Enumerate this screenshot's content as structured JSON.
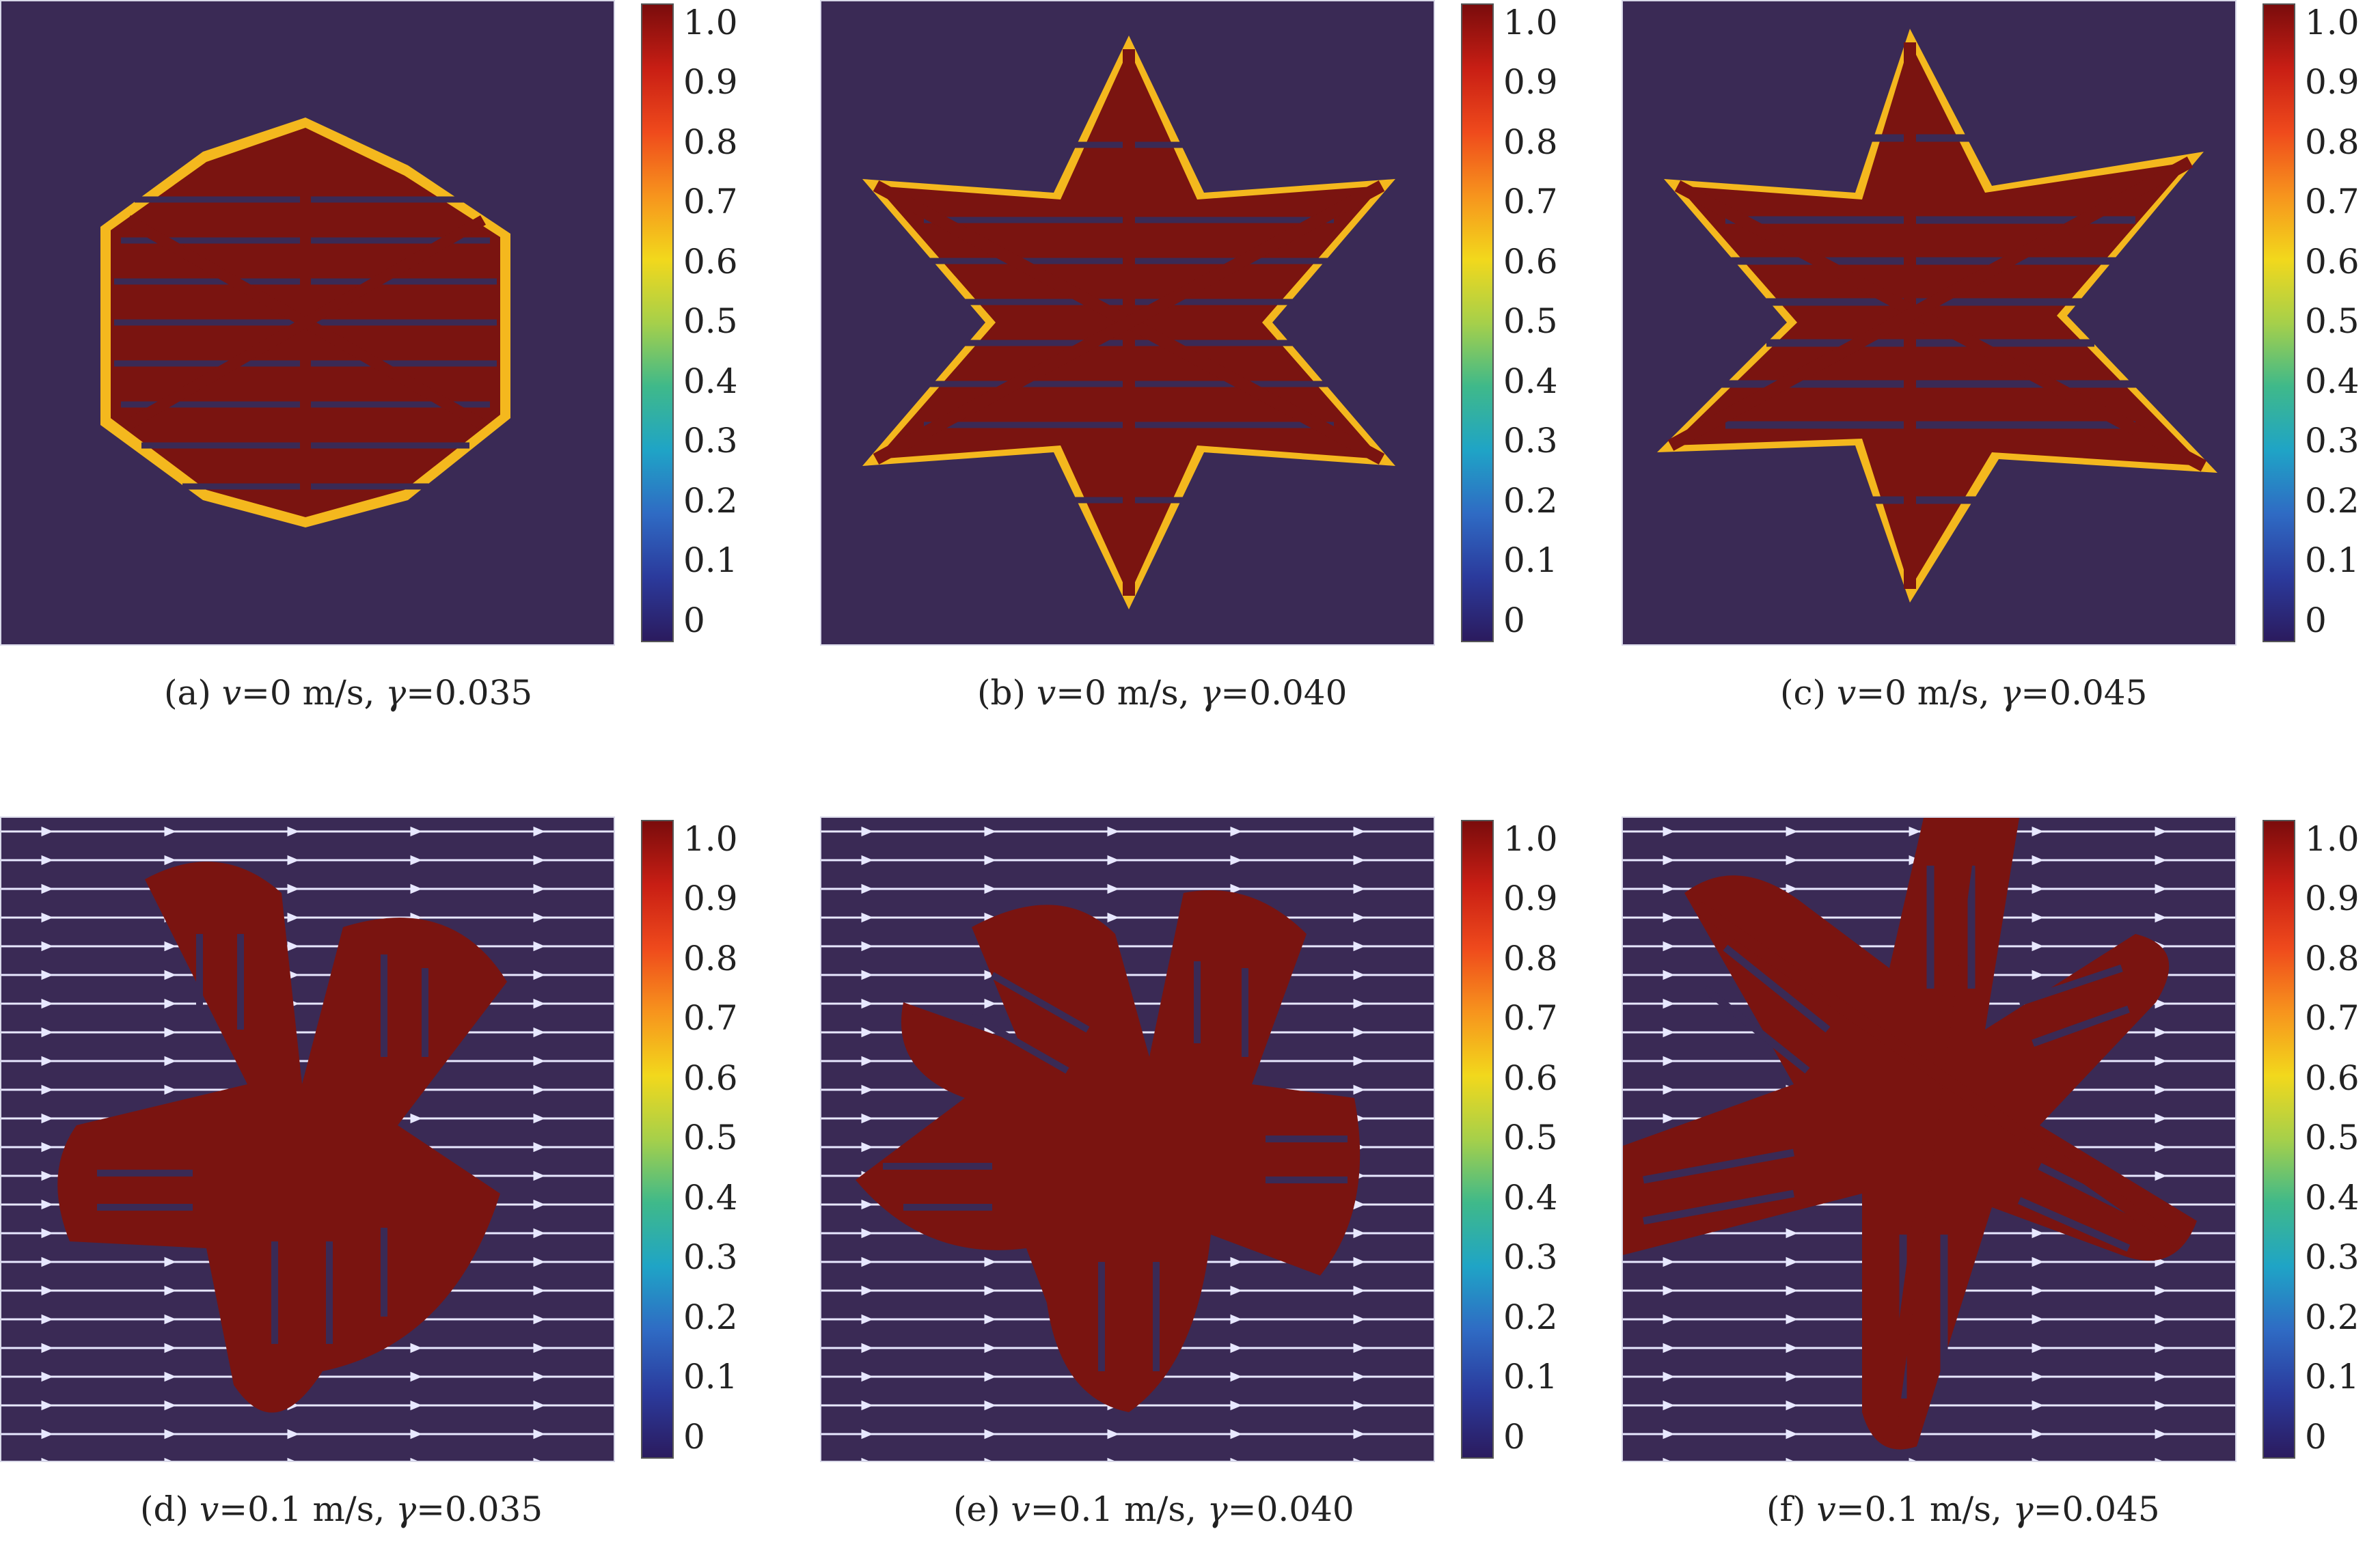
{
  "colorbar": {
    "ticks": [
      "1.0",
      "0.9",
      "0.8",
      "0.7",
      "0.6",
      "0.5",
      "0.4",
      "0.3",
      "0.2",
      "0.1",
      "0"
    ]
  },
  "panels": [
    {
      "label": "(a)",
      "v_sym": "v",
      "v_val": "=0 m/s, ",
      "g_sym": "γ",
      "g_val": "=0.035"
    },
    {
      "label": "(b)",
      "v_sym": "v",
      "v_val": "=0 m/s, ",
      "g_sym": "γ",
      "g_val": "=0.040"
    },
    {
      "label": "(c)",
      "v_sym": "v",
      "v_val": "=0 m/s, ",
      "g_sym": "γ",
      "g_val": "=0.045"
    },
    {
      "label": "(d)",
      "v_sym": "v",
      "v_val": "=0.1 m/s, ",
      "g_sym": "γ",
      "g_val": "=0.035"
    },
    {
      "label": "(e)",
      "v_sym": "v",
      "v_val": "=0.1 m/s, ",
      "g_sym": "γ",
      "g_val": "=0.040"
    },
    {
      "label": "(f)",
      "v_sym": "v",
      "v_val": "=0.1 m/s, ",
      "g_sym": "γ",
      "g_val": "=0.045"
    }
  ],
  "colors": {
    "background": "#3a2a55",
    "dendrite": "#7a1410",
    "edge_glow": "#f2c81c",
    "streamline": "#e8e8ff"
  }
}
